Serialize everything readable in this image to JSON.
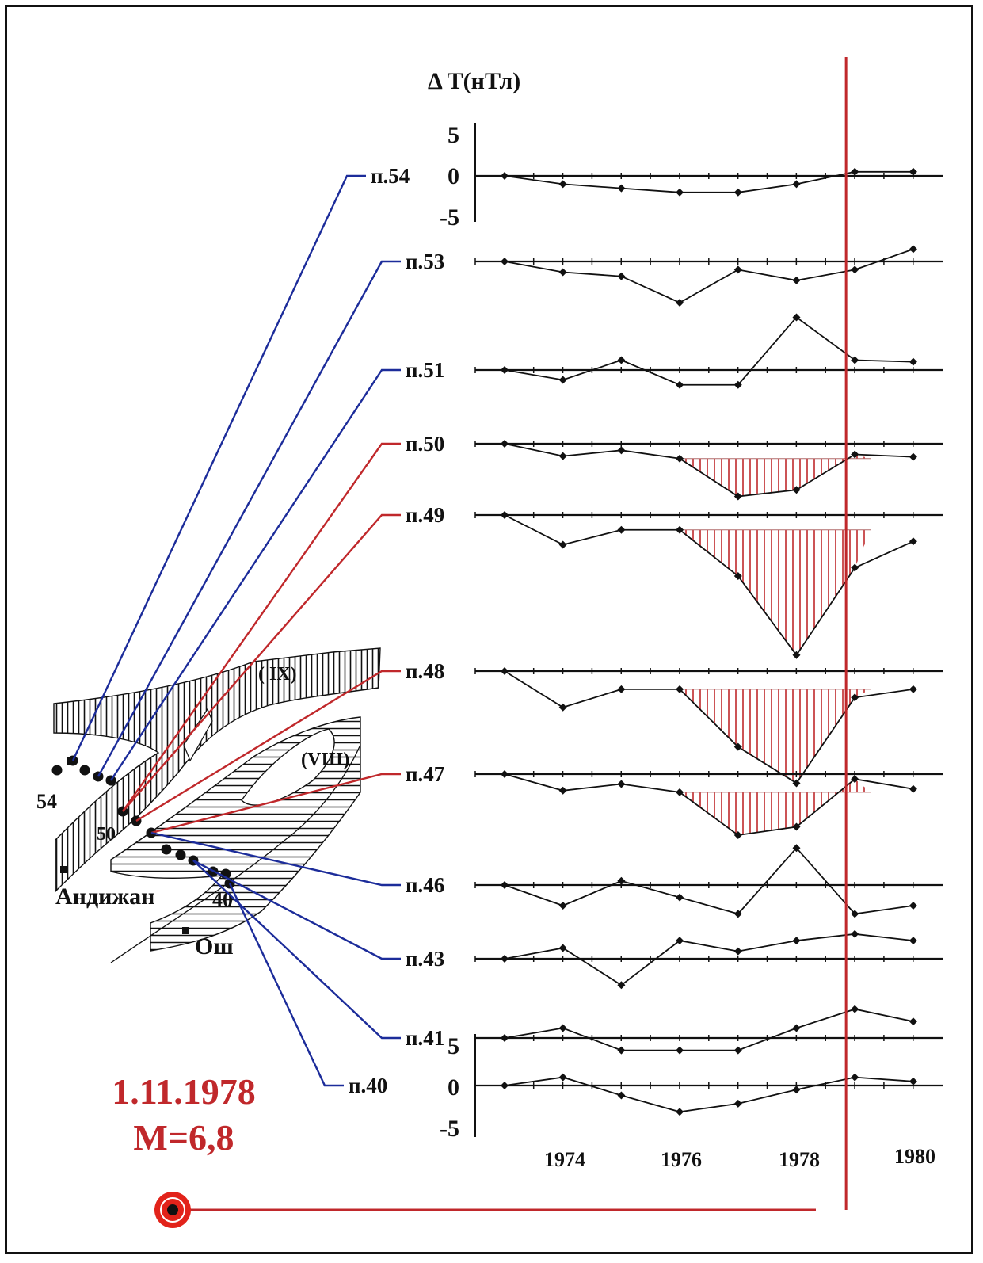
{
  "colors": {
    "link_normal": "#1c2c9a",
    "link_anomalous": "#c0282b",
    "event_line": "#c0282b",
    "anomaly_fill": "#c0282b"
  },
  "map": {
    "zone_labels": [
      "( IX)",
      "(VIII)"
    ],
    "point_labels": [
      "54",
      "50",
      "40"
    ],
    "cities": [
      "Андижан",
      "Ош"
    ]
  },
  "event": {
    "date": "1.11.1978",
    "magnitude": "M=6,8"
  },
  "chart_data": {
    "type": "line",
    "ylabel": "Δ T(нТл)",
    "x_tick_labels": [
      "1974",
      "1976",
      "1978",
      "1980"
    ],
    "y_tick_labels_top": [
      "5",
      "0",
      "-5"
    ],
    "y_tick_labels_bottom": [
      "5",
      "0",
      "-5"
    ],
    "x": [
      1973,
      1974,
      1975,
      1976,
      1977,
      1978,
      1979,
      1980
    ],
    "event_year": 1978.85,
    "series": [
      {
        "name": "п.54",
        "anomalous": false,
        "values": [
          0,
          -1,
          -1.5,
          -2,
          -2,
          -1,
          0.5,
          0.5
        ]
      },
      {
        "name": "п.53",
        "anomalous": false,
        "values": [
          0,
          -1.3,
          -1.8,
          -5,
          -1,
          -2.3,
          -1,
          1.5
        ]
      },
      {
        "name": "п.51",
        "anomalous": false,
        "values": [
          0,
          -1.2,
          1.2,
          -1.8,
          -1.8,
          6.4,
          1.2,
          1
        ]
      },
      {
        "name": "п.50",
        "anomalous": true,
        "values": [
          0,
          -1.5,
          -0.8,
          -1.8,
          -6.4,
          -5.6,
          -1.3,
          -1.6
        ]
      },
      {
        "name": "п.49",
        "anomalous": true,
        "values": [
          0,
          -3.6,
          -1.8,
          -1.8,
          -7.4,
          -17,
          -6.4,
          -3.2
        ]
      },
      {
        "name": "п.48",
        "anomalous": true,
        "values": [
          0,
          -4.4,
          -2.2,
          -2.2,
          -9.2,
          -13.6,
          -3.2,
          -2.2
        ]
      },
      {
        "name": "п.47",
        "anomalous": true,
        "values": [
          0,
          -2,
          -1.2,
          -2.2,
          -7.4,
          -6.4,
          -0.6,
          -1.8
        ]
      },
      {
        "name": "п.46",
        "anomalous": false,
        "values": [
          0,
          -2.5,
          0.5,
          -1.5,
          -3.5,
          4.5,
          -3.5,
          -2.5
        ]
      },
      {
        "name": "п.43",
        "anomalous": false,
        "values": [
          0,
          1.3,
          -3.2,
          2.2,
          0.9,
          2.2,
          3,
          2.2
        ]
      },
      {
        "name": "п.41",
        "anomalous": false,
        "values": [
          0,
          1.2,
          -1.5,
          -1.5,
          -1.5,
          1.2,
          3.5,
          2
        ]
      },
      {
        "name": "п.40",
        "anomalous": false,
        "values": [
          0,
          1,
          -1.2,
          -3.2,
          -2.2,
          -0.5,
          1,
          0.5
        ]
      }
    ]
  }
}
